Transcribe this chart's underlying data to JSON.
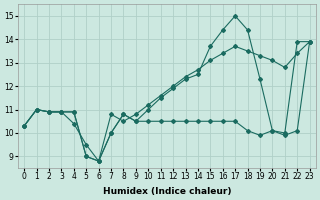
{
  "xlabel": "Humidex (Indice chaleur)",
  "xlim": [
    -0.5,
    23.5
  ],
  "ylim": [
    8.5,
    15.5
  ],
  "yticks": [
    9,
    10,
    11,
    12,
    13,
    14,
    15
  ],
  "xticks": [
    0,
    1,
    2,
    3,
    4,
    5,
    6,
    7,
    8,
    9,
    10,
    11,
    12,
    13,
    14,
    15,
    16,
    17,
    18,
    19,
    20,
    21,
    22,
    23
  ],
  "bg_color": "#cce8e0",
  "grid_color": "#b0d0c8",
  "line_color": "#1a6b60",
  "line1_x": [
    0,
    1,
    2,
    3,
    4,
    5,
    6,
    7,
    8,
    9,
    10,
    11,
    12,
    13,
    14,
    15,
    16,
    17,
    18,
    19,
    20,
    21,
    22,
    23
  ],
  "line1_y": [
    10.3,
    11.0,
    10.9,
    10.9,
    10.9,
    9.0,
    8.8,
    10.0,
    10.8,
    10.5,
    10.5,
    10.5,
    10.5,
    10.5,
    10.5,
    10.5,
    10.5,
    10.5,
    10.1,
    9.9,
    10.1,
    10.0,
    13.9,
    13.9
  ],
  "line2_x": [
    0,
    1,
    2,
    3,
    4,
    5,
    6,
    7,
    8,
    9,
    10,
    11,
    12,
    13,
    14,
    15,
    16,
    17,
    18,
    19,
    20,
    21,
    22,
    23
  ],
  "line2_y": [
    10.3,
    11.0,
    10.9,
    10.9,
    10.9,
    9.0,
    8.8,
    10.0,
    10.8,
    10.5,
    11.0,
    11.5,
    11.9,
    12.3,
    12.5,
    13.7,
    14.4,
    15.0,
    14.4,
    12.3,
    10.1,
    9.9,
    10.1,
    13.9
  ],
  "line3_x": [
    0,
    1,
    2,
    3,
    4,
    5,
    6,
    7,
    8,
    9,
    10,
    11,
    12,
    13,
    14,
    15,
    16,
    17,
    18,
    19,
    20,
    21,
    22,
    23
  ],
  "line3_y": [
    10.3,
    11.0,
    10.9,
    10.9,
    10.4,
    9.5,
    8.8,
    10.8,
    10.5,
    10.8,
    11.2,
    11.6,
    12.0,
    12.4,
    12.7,
    13.1,
    13.4,
    13.7,
    13.5,
    13.3,
    13.1,
    12.8,
    13.4,
    13.9
  ]
}
